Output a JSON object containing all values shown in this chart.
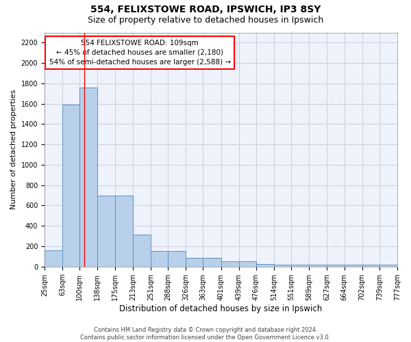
{
  "title1": "554, FELIXSTOWE ROAD, IPSWICH, IP3 8SY",
  "title2": "Size of property relative to detached houses in Ipswich",
  "xlabel": "Distribution of detached houses by size in Ipswich",
  "ylabel": "Number of detached properties",
  "bin_edges": [
    25,
    63,
    100,
    138,
    175,
    213,
    251,
    288,
    326,
    363,
    401,
    439,
    476,
    514,
    551,
    589,
    627,
    664,
    702,
    739,
    777
  ],
  "bar_heights": [
    160,
    1590,
    1760,
    700,
    700,
    315,
    155,
    155,
    85,
    85,
    50,
    50,
    25,
    20,
    20,
    15,
    15,
    15,
    15,
    15
  ],
  "bar_color": "#b8d0ea",
  "bar_edge_color": "#6090c0",
  "red_line_x": 109,
  "annotation_text": "554 FELIXSTOWE ROAD: 109sqm\n← 45% of detached houses are smaller (2,180)\n54% of semi-detached houses are larger (2,588) →",
  "ylim": [
    0,
    2300
  ],
  "yticks": [
    0,
    200,
    400,
    600,
    800,
    1000,
    1200,
    1400,
    1600,
    1800,
    2000,
    2200
  ],
  "grid_color": "#ccccdd",
  "background_color": "#eef2fb",
  "footer_text": "Contains HM Land Registry data © Crown copyright and database right 2024.\nContains public sector information licensed under the Open Government Licence v3.0.",
  "title1_fontsize": 10,
  "title2_fontsize": 9,
  "xlabel_fontsize": 8.5,
  "ylabel_fontsize": 8,
  "tick_fontsize": 7,
  "annotation_fontsize": 7.5,
  "footer_fontsize": 6
}
